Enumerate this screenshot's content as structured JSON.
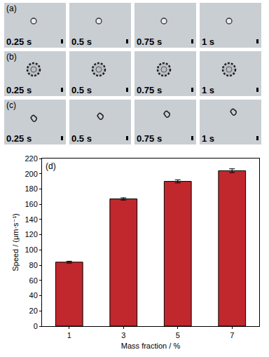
{
  "panels": [
    {
      "label": "(a)",
      "times": [
        "0.25 s",
        "0.5 s",
        "0.75 s",
        "1 s"
      ]
    },
    {
      "label": "(b)",
      "times": [
        "0.25 s",
        "0.5 s",
        "0.75 s",
        "1 s"
      ]
    },
    {
      "label": "(c)",
      "times": [
        "0.25 s",
        "0.5 s",
        "0.75 s",
        "1 s"
      ]
    }
  ],
  "chart_data": {
    "type": "bar",
    "annotations": [
      "(d)"
    ],
    "x_label": "Mass fraction / %",
    "y_label": "Speed / (μm·s⁻¹)",
    "categories": [
      "1",
      "3",
      "5",
      "7"
    ],
    "values": [
      84,
      167,
      190,
      204
    ],
    "errors": [
      1.2,
      1.5,
      2,
      2.5
    ],
    "color": "#c0282d",
    "ylim": [
      0,
      220
    ],
    "yticks": [
      0,
      20,
      40,
      60,
      80,
      100,
      120,
      140,
      160,
      180,
      200,
      220
    ],
    "grid": false
  }
}
